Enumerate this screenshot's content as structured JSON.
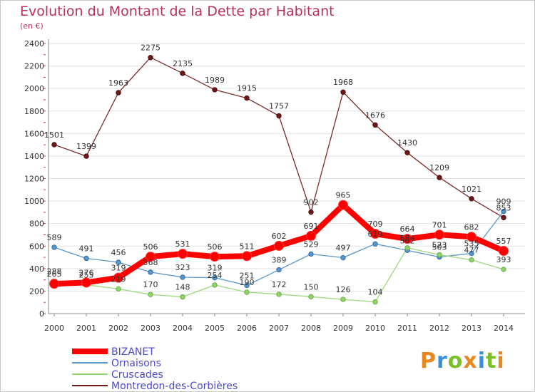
{
  "title": "Evolution du Montant de la Dette par Habitant",
  "subtitle": "(en €)",
  "logo": {
    "text": "Proxiti",
    "colors": [
      "#e8891f",
      "#3b8ed8",
      "#7cbf2a",
      "#e8891f",
      "#3b8ed8",
      "#7cbf2a",
      "#e8891f"
    ]
  },
  "chart_data": {
    "type": "line",
    "x": [
      "2000",
      "2001",
      "2002",
      "2003",
      "2004",
      "2005",
      "2006",
      "2007",
      "2008",
      "2009",
      "2010",
      "2011",
      "2012",
      "2013",
      "2014"
    ],
    "ylim": [
      0,
      2400
    ],
    "yticks": [
      "0",
      "200",
      "400",
      "600",
      "800",
      "1000",
      "1200",
      "1400",
      "1600",
      "1800",
      "2000",
      "2200",
      "2400"
    ],
    "grid": "horizontal",
    "legend_position": "bottom-left",
    "series": [
      {
        "name": "Montredon-des-Corbières",
        "color": "#6e1a1a",
        "values": [
          1501,
          1399,
          1963,
          2275,
          2135,
          1989,
          1915,
          1757,
          902,
          1968,
          1676,
          1430,
          1209,
          1021,
          853
        ]
      },
      {
        "name": "Ornaisons",
        "color": "#5a96c8",
        "values": [
          589,
          491,
          456,
          368,
          323,
          319,
          251,
          389,
          529,
          497,
          619,
          562,
          503,
          535,
          909
        ]
      },
      {
        "name": "Cruscades",
        "color": "#8fd46a",
        "values": [
          288,
          255,
          219,
          170,
          148,
          254,
          190,
          172,
          150,
          126,
          104,
          584,
          523,
          477,
          393
        ]
      },
      {
        "name": "BIZANET",
        "color": "#ff0000",
        "values": [
          265,
          276,
          319,
          506,
          531,
          506,
          511,
          602,
          691,
          965,
          709,
          664,
          701,
          682,
          557
        ]
      }
    ],
    "data_labels": [
      {
        "series": "Montredon-des-Corbières",
        "labels": [
          "1501",
          "1399",
          "1963",
          "2275",
          "2135",
          "1989",
          "1915",
          "1757",
          "902",
          "1968",
          "1676",
          "1430",
          "1209",
          "1021",
          "853"
        ]
      },
      {
        "series": "Ornaisons",
        "labels": [
          "589",
          "491",
          "456",
          "368",
          "323",
          "319",
          "251",
          "389",
          "529",
          "497",
          "619",
          "562",
          "503",
          "535",
          "909"
        ]
      },
      {
        "series": "Cruscades",
        "labels": [
          "288",
          "255",
          "219",
          "170",
          "148",
          "254",
          "190",
          "172",
          "150",
          "126",
          "104",
          "584",
          "523",
          "477",
          "393"
        ]
      },
      {
        "series": "BIZANET",
        "labels": [
          "265",
          "276",
          "319",
          "506",
          "531",
          "506",
          "511",
          "602",
          "691",
          "965",
          "709",
          "664",
          "701",
          "682",
          "557"
        ]
      }
    ]
  }
}
